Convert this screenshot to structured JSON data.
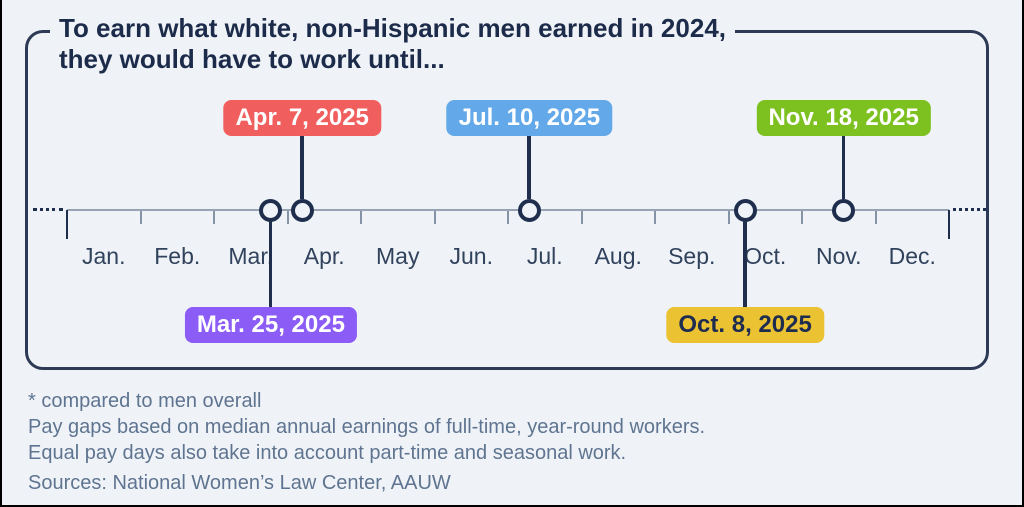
{
  "title": {
    "line1": "To earn what white, non-Hispanic men earned in 2024,",
    "line2": "they would have to work until..."
  },
  "chart_data": {
    "type": "timeline",
    "title": "To earn what white, non-Hispanic men earned in 2024, they would have to work until...",
    "x_axis": {
      "unit": "months",
      "year": 2025,
      "tick_labels": [
        "Jan.",
        "Feb.",
        "Mar.",
        "Apr.",
        "May",
        "Jun.",
        "Jul.",
        "Aug.",
        "Sep.",
        "Oct.",
        "Nov.",
        "Dec."
      ]
    },
    "events": [
      {
        "date": "Apr. 7, 2025",
        "month": 4,
        "day": 7,
        "label_side": "top",
        "pill_color": "#f15e5e",
        "text_color": "#ffffff"
      },
      {
        "date": "Jul. 10, 2025",
        "month": 7,
        "day": 10,
        "label_side": "top",
        "pill_color": "#63a9e9",
        "text_color": "#ffffff"
      },
      {
        "date": "Nov. 18, 2025",
        "month": 11,
        "day": 18,
        "label_side": "top",
        "pill_color": "#7cc120",
        "text_color": "#ffffff"
      },
      {
        "date": "Mar. 25, 2025",
        "month": 3,
        "day": 25,
        "label_side": "bottom",
        "pill_color": "#8b5cf6",
        "text_color": "#ffffff"
      },
      {
        "date": "Oct. 8, 2025",
        "month": 10,
        "day": 8,
        "label_side": "bottom",
        "pill_color": "#eac232",
        "text_color": "#1e2c50"
      }
    ]
  },
  "footnotes": {
    "note1": "* compared to men overall",
    "note2": "Pay gaps based on median annual earnings of full-time, year-round workers.",
    "note3": "Equal pay days also take into account part-time and seasonal work.",
    "sources": "Sources: National Women’s Law Center, AAUW"
  },
  "theme": {
    "background": "#eff3f8",
    "panel_border": "#2d3a55",
    "marker_navy": "#1f2e4d",
    "axis_line": "#97a3b2",
    "tick": "#8493a6",
    "month_label": "#31425c",
    "title_text": "#1c2b4a",
    "footnote_text": "#5f7490",
    "screen_edge": "#000000"
  }
}
